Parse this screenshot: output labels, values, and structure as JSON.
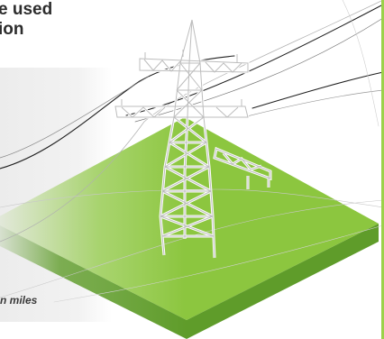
{
  "heading": {
    "line1": "e used",
    "line2": "ion"
  },
  "distance_label": "n miles",
  "colors": {
    "ground_top": "#8cc63f",
    "ground_side": "#5f9c2a",
    "accent_bar": "#9bd14a",
    "panel": "#ececec",
    "heading_text": "#2d2d2d"
  },
  "icons": [
    "transmission-tower-icon",
    "power-lines-icon"
  ]
}
